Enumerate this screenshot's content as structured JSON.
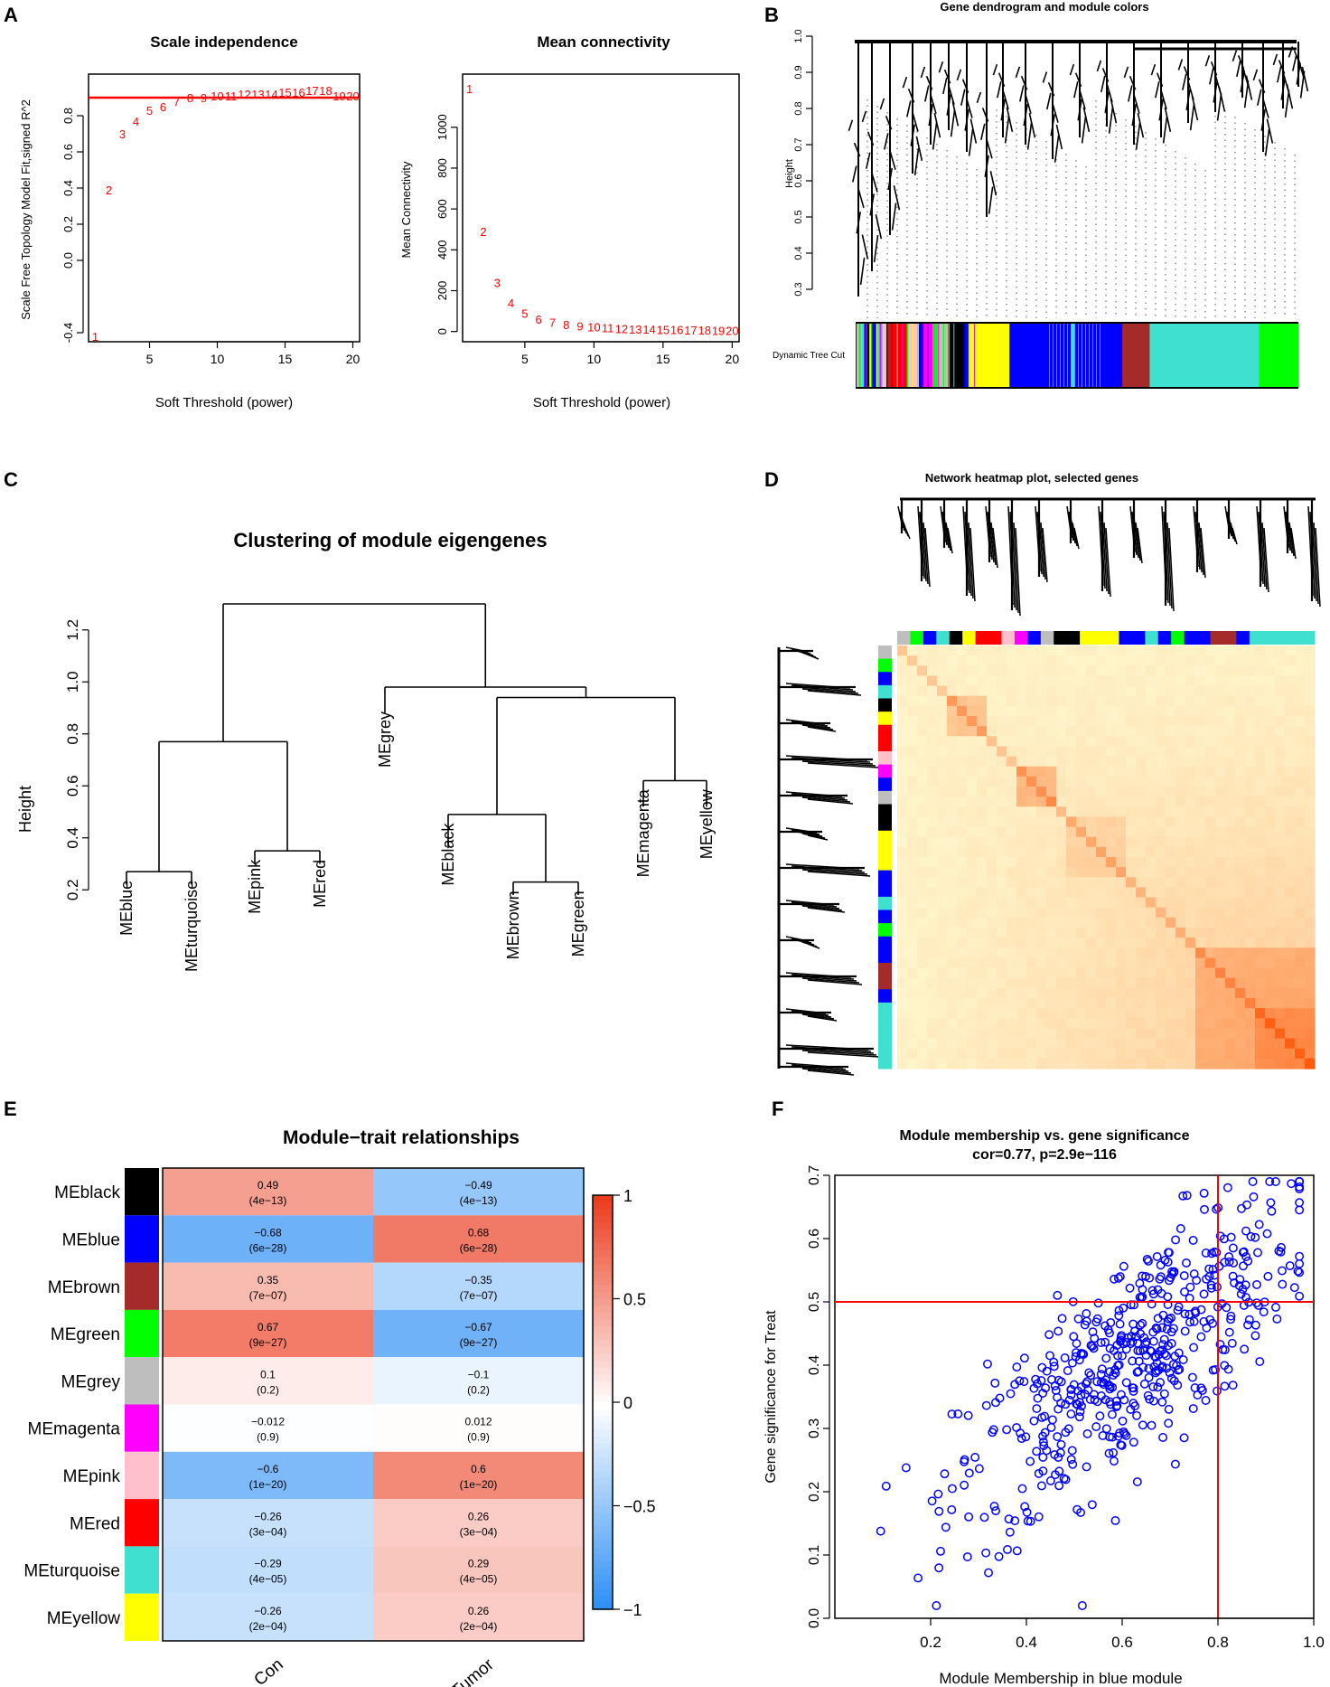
{
  "panels": {
    "a": "A",
    "b": "B",
    "c": "C",
    "d": "D",
    "e": "E",
    "f": "F"
  },
  "colors": {
    "red": "#ff0000",
    "blue": "#0000ff",
    "heat_low": "#fff8cf",
    "heat_high": "#ff5000"
  },
  "modules": {
    "black": "#000000",
    "blue": "#0000ff",
    "brown": "#a52a2a",
    "green": "#00ff00",
    "grey": "#bebebe",
    "magenta": "#ff00ff",
    "pink": "#ffc0cb",
    "red": "#ff0000",
    "turquoise": "#40e0d0",
    "yellow": "#ffff00"
  },
  "chart_data": [
    {
      "id": "scale-independence",
      "type": "scatter",
      "title": "Scale independence",
      "xlabel": "Soft Threshold (power)",
      "ylabel": "Scale Free Topology Model Fit,signed R^2",
      "xlim": [
        0.5,
        20.5
      ],
      "ylim": [
        -0.45,
        1.03
      ],
      "xticks": [
        "5",
        "10",
        "15",
        "20"
      ],
      "yticks": [
        "-0.4",
        "0.0",
        "0.2",
        "0.4",
        "0.6",
        "0.8"
      ],
      "x": [
        1,
        2,
        3,
        4,
        5,
        6,
        7,
        8,
        9,
        10,
        11,
        12,
        13,
        14,
        15,
        16,
        17,
        18,
        19,
        20
      ],
      "y": [
        -0.42,
        0.39,
        0.7,
        0.77,
        0.83,
        0.85,
        0.88,
        0.9,
        0.9,
        0.91,
        0.91,
        0.92,
        0.92,
        0.92,
        0.93,
        0.93,
        0.94,
        0.94,
        0.91,
        0.91
      ],
      "labels": [
        "1",
        "2",
        "3",
        "4",
        "5",
        "6",
        "7",
        "8",
        "9",
        "10",
        "11",
        "12",
        "13",
        "14",
        "15",
        "16",
        "17",
        "18",
        "19",
        "20"
      ],
      "hline": 0.9
    },
    {
      "id": "mean-connectivity",
      "type": "scatter",
      "title": "Mean connectivity",
      "xlabel": "Soft Threshold (power)",
      "ylabel": "Mean Connectivity",
      "xlim": [
        0.5,
        20.5
      ],
      "ylim": [
        -50,
        1260
      ],
      "xticks": [
        "5",
        "10",
        "15",
        "20"
      ],
      "yticks": [
        "0",
        "200",
        "400",
        "600",
        "800",
        "1000"
      ],
      "x": [
        1,
        2,
        3,
        4,
        5,
        6,
        7,
        8,
        9,
        10,
        11,
        12,
        13,
        14,
        15,
        16,
        17,
        18,
        19,
        20
      ],
      "y": [
        1190,
        490,
        240,
        140,
        90,
        60,
        45,
        35,
        28,
        22,
        18,
        15,
        13,
        11,
        10,
        9,
        8,
        7,
        6,
        5
      ],
      "labels": [
        "1",
        "2",
        "3",
        "4",
        "5",
        "6",
        "7",
        "8",
        "9",
        "10",
        "11",
        "12",
        "13",
        "14",
        "15",
        "16",
        "17",
        "18",
        "19",
        "20"
      ]
    },
    {
      "id": "gene-dendrogram",
      "type": "dendrogram",
      "title": "Gene dendrogram and module colors",
      "ylabel": "Height",
      "yticks": [
        "0.3",
        "0.4",
        "0.5",
        "0.6",
        "0.7",
        "0.8",
        "0.9",
        "1.0"
      ],
      "row_label": "Dynamic Tree Cut",
      "segments": [
        {
          "m": "grey",
          "w": 2
        },
        {
          "m": "green",
          "w": 1
        },
        {
          "m": "turquoise",
          "w": 2
        },
        {
          "m": "blue",
          "w": 2
        },
        {
          "m": "black",
          "w": 1
        },
        {
          "m": "yellow",
          "w": 1
        },
        {
          "m": "blue",
          "w": 3
        },
        {
          "m": "turquoise",
          "w": 2
        },
        {
          "m": "magenta",
          "w": 1
        },
        {
          "m": "grey",
          "w": 1
        },
        {
          "m": "pink",
          "w": 2
        },
        {
          "m": "brown",
          "w": 2
        },
        {
          "m": "red",
          "w": 10
        },
        {
          "m": "pink",
          "w": 7
        },
        {
          "m": "blue",
          "w": 2
        },
        {
          "m": "magenta",
          "w": 7
        },
        {
          "m": "green",
          "w": 2
        },
        {
          "m": "grey",
          "w": 6
        },
        {
          "m": "black",
          "w": 10
        },
        {
          "m": "blue",
          "w": 2
        },
        {
          "m": "yellow",
          "w": 24
        },
        {
          "m": "blue",
          "w": 36
        },
        {
          "m": "turquoise",
          "w": 2
        },
        {
          "m": "blue",
          "w": 8
        },
        {
          "m": "blue",
          "w": 20
        },
        {
          "m": "brown",
          "w": 16
        },
        {
          "m": "turquoise",
          "w": 64
        },
        {
          "m": "green",
          "w": 23
        }
      ]
    },
    {
      "id": "eigengene-clustering",
      "type": "dendrogram",
      "title": "Clustering of module eigengenes",
      "ylabel": "Height",
      "yticks": [
        "0.2",
        "0.4",
        "0.6",
        "0.8",
        "1.0",
        "1.2"
      ],
      "ylim": [
        0.18,
        1.38
      ],
      "leaves": [
        "MEblue",
        "MEturquoise",
        "MEpink",
        "MEred",
        "MEgrey",
        "MEblack",
        "MEbrown",
        "MEgreen",
        "MEmagenta",
        "MEyellow"
      ],
      "leaf_heights": [
        0.27,
        0.27,
        0.35,
        0.35,
        0.92,
        0.49,
        0.23,
        0.23,
        0.62,
        0.62
      ],
      "merges": [
        {
          "a": "MEblue",
          "b": "MEturquoise",
          "h": 0.27
        },
        {
          "a": "MEpink",
          "b": "MEred",
          "h": 0.35
        },
        {
          "a": "MEbrown",
          "b": "MEgreen",
          "h": 0.23
        },
        {
          "a": "MEmagenta",
          "b": "MEyellow",
          "h": 0.62
        },
        {
          "a": "(MEblack)",
          "b": "(MEbrown,MEgreen)",
          "h": 0.49
        },
        {
          "a": "(MEblue,MEturquoise)",
          "b": "(MEpink,MEred)",
          "h": 0.77
        },
        {
          "a": "(MEblack,MEbrown,MEgreen)",
          "b": "(MEmagenta,MEyellow)",
          "h": 0.94
        },
        {
          "a": "(MEgrey)",
          "b": "(black..yellow)",
          "h": 0.98
        },
        {
          "a": "(blue..red)",
          "b": "(grey..yellow)",
          "h": 1.3
        }
      ]
    },
    {
      "id": "network-heatmap",
      "type": "heatmap",
      "title": "Network heatmap plot, selected genes"
    },
    {
      "id": "module-trait",
      "type": "heatmap",
      "title": "Module−trait relationships",
      "rows": [
        "MEblack",
        "MEblue",
        "MEbrown",
        "MEgreen",
        "MEgrey",
        "MEmagenta",
        "MEpink",
        "MEred",
        "MEturquoise",
        "MEyellow"
      ],
      "row_colors": [
        "black",
        "blue",
        "brown",
        "green",
        "grey",
        "magenta",
        "pink",
        "red",
        "turquoise",
        "yellow"
      ],
      "columns": [
        "Con",
        "Tumor"
      ],
      "values": [
        [
          0.49,
          -0.49
        ],
        [
          -0.68,
          0.68
        ],
        [
          0.35,
          -0.35
        ],
        [
          0.67,
          -0.67
        ],
        [
          0.1,
          -0.1
        ],
        [
          -0.012,
          0.012
        ],
        [
          -0.6,
          0.6
        ],
        [
          -0.26,
          0.26
        ],
        [
          -0.29,
          0.29
        ],
        [
          -0.26,
          0.26
        ]
      ],
      "cell_text": [
        [
          "0.49",
          "−0.49"
        ],
        [
          "−0.68",
          "0.68"
        ],
        [
          "0.35",
          "−0.35"
        ],
        [
          "0.67",
          "−0.67"
        ],
        [
          "0.1",
          "−0.1"
        ],
        [
          "−0.012",
          "0.012"
        ],
        [
          "−0.6",
          "0.6"
        ],
        [
          "−0.26",
          "0.26"
        ],
        [
          "−0.29",
          "0.29"
        ],
        [
          "−0.26",
          "0.26"
        ]
      ],
      "pvalues": [
        [
          "(4e−13)",
          "(4e−13)"
        ],
        [
          "(6e−28)",
          "(6e−28)"
        ],
        [
          "(7e−07)",
          "(7e−07)"
        ],
        [
          "(9e−27)",
          "(9e−27)"
        ],
        [
          "(0.2)",
          "(0.2)"
        ],
        [
          "(0.9)",
          "(0.9)"
        ],
        [
          "(1e−20)",
          "(1e−20)"
        ],
        [
          "(3e−04)",
          "(3e−04)"
        ],
        [
          "(4e−05)",
          "(4e−05)"
        ],
        [
          "(2e−04)",
          "(2e−04)"
        ]
      ],
      "scale_ticks": [
        "1",
        "0.5",
        "0",
        "−0.5",
        "−1"
      ],
      "scale_values": [
        1,
        0.5,
        0,
        -0.5,
        -1
      ]
    },
    {
      "id": "membership-significance",
      "type": "scatter",
      "title": "Module membership vs. gene significance",
      "subtitle": "cor=0.77, p=2.9e−116",
      "xlabel": "Module Membership in blue module",
      "ylabel": "Gene significance for  Treat",
      "xlim": [
        0.0,
        1.0
      ],
      "ylim": [
        0.0,
        0.7
      ],
      "xticks": [
        "0.2",
        "0.4",
        "0.6",
        "0.8",
        "1.0"
      ],
      "yticks": [
        "0.0",
        "0.1",
        "0.2",
        "0.3",
        "0.4",
        "0.5",
        "0.6",
        "0.7"
      ],
      "vline": 0.8,
      "hline": 0.5,
      "n_points": 520,
      "cor": 0.77,
      "mean_x": 0.62,
      "sd_x": 0.18,
      "mean_y": 0.41,
      "sd_y": 0.13
    }
  ]
}
